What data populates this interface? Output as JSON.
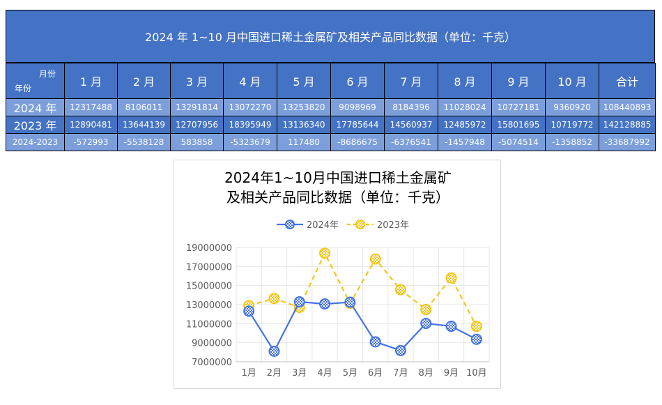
{
  "table": {
    "title": "2024 年 1~10 月中国进口稀土金属矿及相关产品同比数据（单位：千克）",
    "corner_top": "月份",
    "corner_bottom": "年份",
    "headers": [
      "1 月",
      "2 月",
      "3 月",
      "4 月",
      "5 月",
      "6 月",
      "7 月",
      "8 月",
      "9 月",
      "10 月",
      "合计"
    ],
    "rows": [
      {
        "label": "2024 年",
        "values": [
          "12317488",
          "8106011",
          "13291814",
          "13072270",
          "13253820",
          "9098969",
          "8184396",
          "11028024",
          "10727181",
          "9360920",
          "108440893"
        ]
      },
      {
        "label": "2023 年",
        "values": [
          "12890481",
          "13644139",
          "12707956",
          "18395949",
          "13136340",
          "17785644",
          "14560937",
          "12485972",
          "15801695",
          "10719772",
          "142128885"
        ]
      },
      {
        "label": "2024-2023",
        "values": [
          "-572993",
          "-5538128",
          "583858",
          "-5323679",
          "117480",
          "-8686675",
          "-6376541",
          "-1457948",
          "-5074514",
          "-1358852",
          "-33687992"
        ]
      }
    ]
  },
  "colors": {
    "header_blue": "#4472c4",
    "row_light": "#7c9fdc",
    "series_2024": "#4472e8",
    "series_2023": "#f5c518"
  },
  "chart_data": {
    "type": "line",
    "title_line1": "2024年1~10月中国进口稀土金属矿",
    "title_line2": "及相关产品同比数据（单位：千克）",
    "categories": [
      "1月",
      "2月",
      "3月",
      "4月",
      "5月",
      "6月",
      "7月",
      "8月",
      "9月",
      "10月"
    ],
    "series": [
      {
        "name": "2024年",
        "style": "solid",
        "values": [
          12317488,
          8106011,
          13291814,
          13072270,
          13253820,
          9098969,
          8184396,
          11028024,
          10727181,
          9360920
        ]
      },
      {
        "name": "2023年",
        "style": "dashed",
        "values": [
          12890481,
          13644139,
          12707956,
          18395949,
          13136340,
          17785644,
          14560937,
          12485972,
          15801695,
          10719772
        ]
      }
    ],
    "yticks": [
      "7000000",
      "9000000",
      "11000000",
      "13000000",
      "15000000",
      "17000000",
      "19000000"
    ],
    "ylim": [
      7000000,
      19000000
    ],
    "legend_position": "top",
    "grid": true
  }
}
